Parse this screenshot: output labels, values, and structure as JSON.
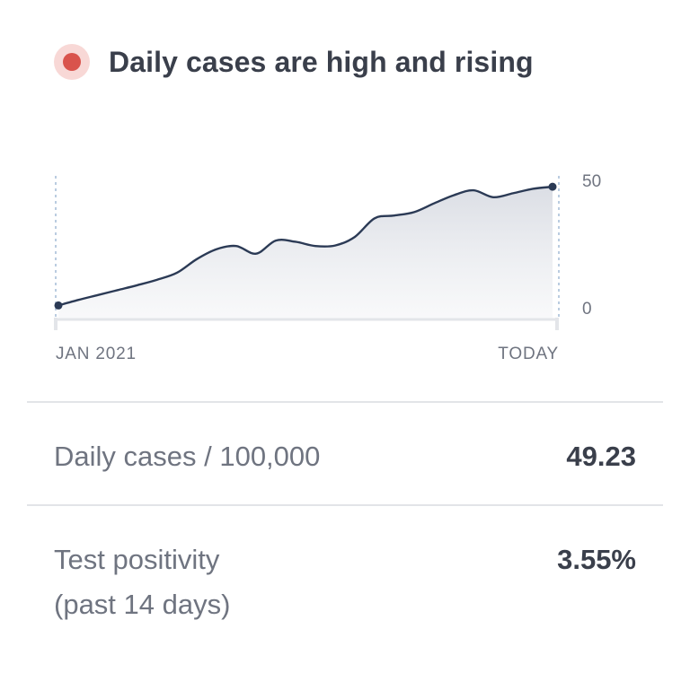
{
  "status": {
    "title": "Daily cases are high and rising",
    "level_color": "#d9534c",
    "level_bg_color": "#f8d8d6"
  },
  "chart_data": {
    "type": "area",
    "x_start_label": "JAN 2021",
    "x_end_label": "TODAY",
    "y_ticks": [
      50,
      0
    ],
    "ylim": [
      0,
      50
    ],
    "grid": false,
    "series": [
      {
        "values": [
          1.3,
          3.5,
          5.5,
          7.5,
          9.5,
          11.7,
          14.5,
          20,
          24,
          25.3,
          22.2,
          27.5,
          27,
          25.3,
          25.5,
          29,
          36.5,
          37.6,
          39,
          42.5,
          45.8,
          47.8,
          45,
          46.6,
          48.4,
          49.23
        ]
      }
    ],
    "line_color": "#2b3a55"
  },
  "metrics": [
    {
      "label": "Daily cases / 100,000",
      "value": "49.23"
    },
    {
      "label_line1": "Test positivity",
      "label_line2": "(past 14 days)",
      "value": "3.55%"
    }
  ]
}
